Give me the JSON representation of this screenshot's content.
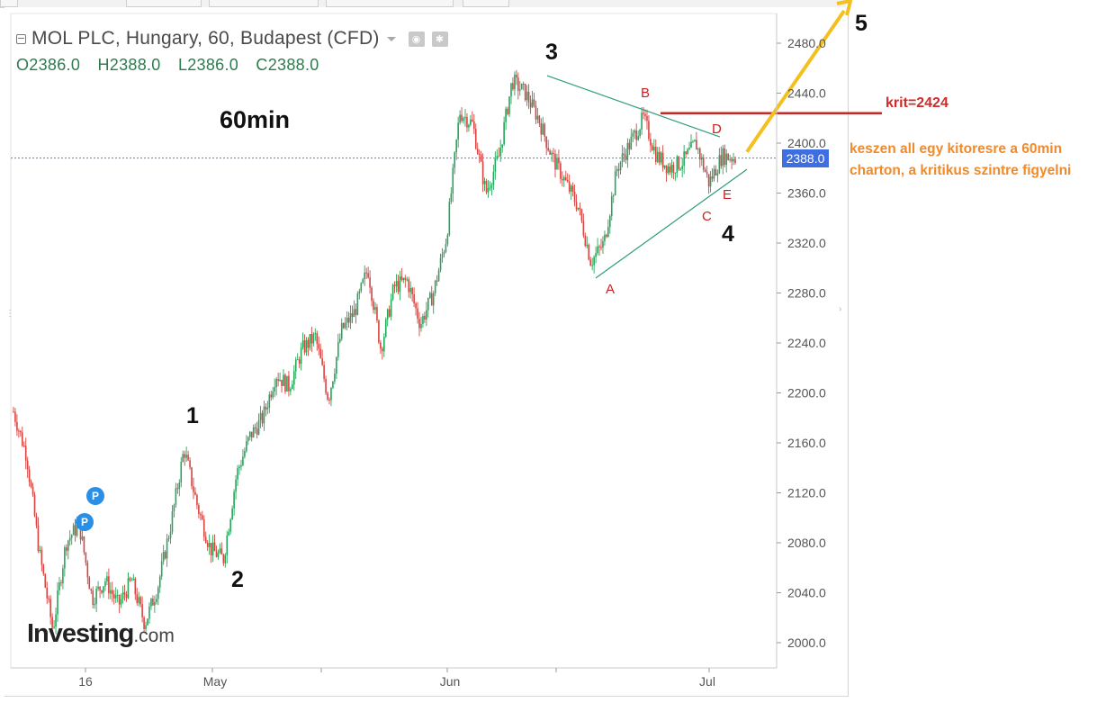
{
  "header": {
    "title": "MOL PLC, Hungary, 60, Budapest (CFD)",
    "ohlc": {
      "open": "O2386.0",
      "high": "H2388.0",
      "low": "L2386.0",
      "close": "C2388.0"
    }
  },
  "annotations": {
    "timeframe": "60min",
    "waves": [
      "1",
      "2",
      "3",
      "4",
      "5"
    ],
    "points": [
      "A",
      "B",
      "C",
      "D",
      "E"
    ],
    "crit_label": "krit=2424",
    "note": "keszen all egy kitoresre a 60min charton, a kritikus szintre figyelni",
    "pivot_marker": "P"
  },
  "logo": {
    "brand": "Investing",
    "suffix": ".com"
  },
  "colors": {
    "up": "#26a65b",
    "down": "#d64541",
    "trendline": "#2f9e7a",
    "current_price_line": "#5b7fd6",
    "crit_line": "#c62828",
    "arrow": "#f4c020",
    "points_text": "#cc1f1f",
    "note_text": "#f08a2a"
  },
  "icons": [
    "collapse-icon",
    "caret-icon",
    "eye-icon",
    "gear-icon"
  ],
  "chart_data": {
    "type": "line",
    "title": "MOL PLC, Hungary, 60, Budapest (CFD)",
    "ylim": [
      1985,
      2502
    ],
    "ytick_labels": [
      "2480.0",
      "2440.0",
      "2400.0",
      "2360.0",
      "2320.0",
      "2280.0",
      "2240.0",
      "2200.0",
      "2160.0",
      "2120.0",
      "2080.0",
      "2040.0",
      "2000.0"
    ],
    "xtick_labels": [
      "16",
      "May",
      "Jun",
      "Jul"
    ],
    "current_price": "2388.0",
    "crit_level": 2424,
    "series": [
      {
        "values": [
          2185,
          2150,
          2070,
          2010,
          2080,
          2095,
          2035,
          2050,
          2030,
          2050,
          2015,
          2045,
          2095,
          2155,
          2110,
          2075,
          2067,
          2135,
          2165,
          2180,
          2215,
          2205,
          2235,
          2245,
          2195,
          2250,
          2265,
          2300,
          2235,
          2285,
          2290,
          2255,
          2280,
          2325,
          2425,
          2415,
          2360,
          2390,
          2450,
          2440,
          2420,
          2390,
          2370,
          2350,
          2305,
          2320,
          2380,
          2400,
          2420,
          2390,
          2380,
          2385,
          2400,
          2368,
          2390,
          2388
        ]
      }
    ]
  }
}
